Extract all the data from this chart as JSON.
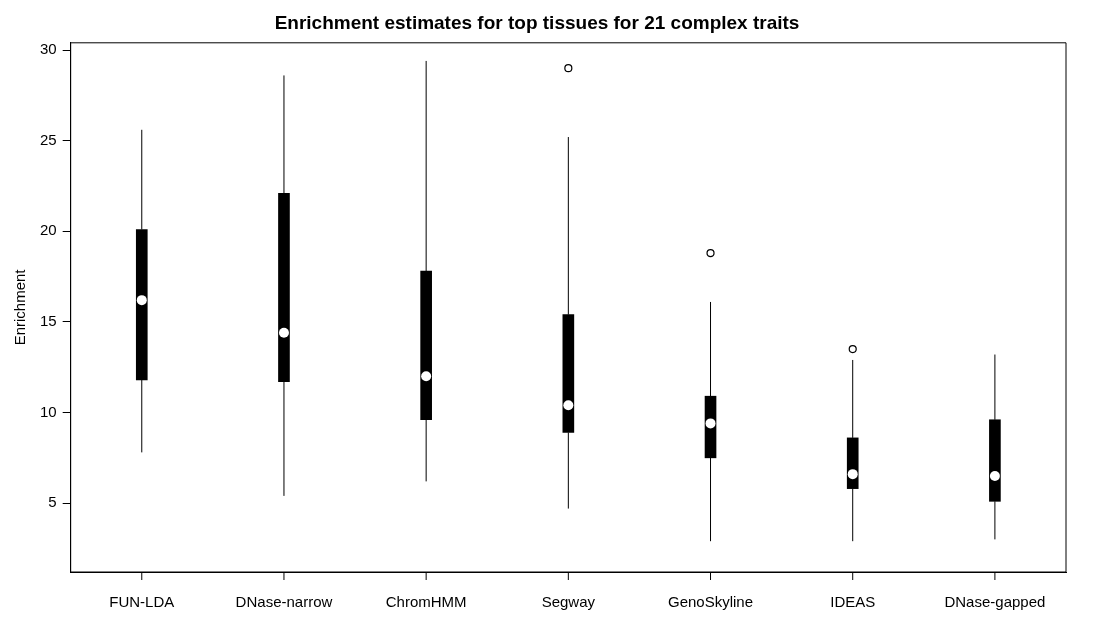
{
  "chart_data": {
    "type": "box",
    "title": "Enrichment estimates for top tissues for 21 complex traits",
    "ylabel": "Enrichment",
    "categories": [
      "FUN-LDA",
      "DNase-narrow",
      "ChromHMM",
      "Segway",
      "GenoSkyline",
      "IDEAS",
      "DNase-gapped"
    ],
    "boxes": [
      {
        "low": 7.8,
        "q1": 11.8,
        "median": 16.2,
        "q3": 20.1,
        "high": 25.6
      },
      {
        "low": 5.4,
        "q1": 11.7,
        "median": 14.4,
        "q3": 22.1,
        "high": 28.6
      },
      {
        "low": 6.2,
        "q1": 9.6,
        "median": 12.0,
        "q3": 17.8,
        "high": 29.4
      },
      {
        "low": 4.7,
        "q1": 8.9,
        "median": 10.4,
        "q3": 15.4,
        "high": 25.2,
        "outliers": [
          29.0
        ]
      },
      {
        "low": 2.9,
        "q1": 7.5,
        "median": 9.4,
        "q3": 10.9,
        "high": 16.1,
        "outliers": [
          18.8
        ]
      },
      {
        "low": 2.9,
        "q1": 5.8,
        "median": 6.6,
        "q3": 8.6,
        "high": 12.9,
        "outliers": [
          13.5
        ]
      },
      {
        "low": 3.0,
        "q1": 5.1,
        "median": 6.5,
        "q3": 9.6,
        "high": 13.2
      }
    ],
    "color": "#000000",
    "ylim": [
      1.2,
      30.4
    ],
    "yticks": [
      5,
      10,
      15,
      20,
      25,
      30
    ],
    "grid": false
  }
}
